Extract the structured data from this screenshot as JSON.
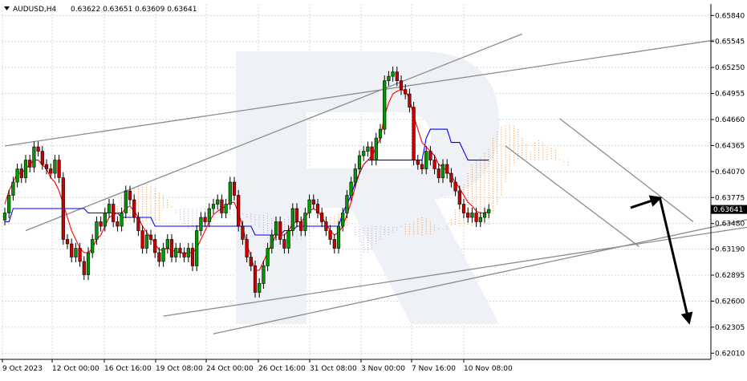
{
  "header": {
    "symbol": "AUDUSD,H4",
    "ohlc": "0.63622 0.63651 0.63609 0.63641"
  },
  "current_price_label": "0.63641",
  "watermark_icon": "rx-logo-watermark",
  "colors": {
    "bull": "#009900",
    "bear": "#cc0000",
    "tenkan": "#ff0000",
    "kijun": "#0000ff",
    "grid": "#d8d8d8",
    "cloud": "#ff8c1a",
    "cloud_alt": "#b39ddb",
    "trendline": "#8c8c8c",
    "arrow": "#000000",
    "watermark": "#eef1f6"
  },
  "chart_data": {
    "type": "candlestick",
    "title": "AUDUSD,H4",
    "y_ticks": [
      "0.65840",
      "0.65545",
      "0.65250",
      "0.64955",
      "0.64660",
      "0.64365",
      "0.64070",
      "0.63775",
      "0.63480",
      "0.63190",
      "0.62895",
      "0.62600",
      "0.62305",
      "0.62010"
    ],
    "ylim": [
      0.6194,
      0.6597
    ],
    "x_ticks": [
      "9 Oct 2023",
      "12 Oct 00:00",
      "16 Oct 16:00",
      "19 Oct 08:00",
      "24 Oct 00:00",
      "26 Oct 16:00",
      "31 Oct 08:00",
      "3 Nov 00:00",
      "7 Nov 16:00",
      "10 Nov 08:00"
    ],
    "grid": true,
    "close": [
      0.636,
      0.638,
      0.6395,
      0.641,
      0.64,
      0.642,
      0.6412,
      0.6435,
      0.643,
      0.6415,
      0.641,
      0.6405,
      0.642,
      0.64,
      0.633,
      0.6325,
      0.631,
      0.632,
      0.6305,
      0.629,
      0.6315,
      0.633,
      0.635,
      0.6345,
      0.636,
      0.637,
      0.635,
      0.6345,
      0.636,
      0.6385,
      0.6375,
      0.6355,
      0.634,
      0.632,
      0.6335,
      0.633,
      0.6315,
      0.6305,
      0.632,
      0.633,
      0.631,
      0.632,
      0.6315,
      0.631,
      0.632,
      0.63,
      0.634,
      0.6355,
      0.635,
      0.6365,
      0.637,
      0.6375,
      0.636,
      0.637,
      0.6395,
      0.638,
      0.6345,
      0.633,
      0.631,
      0.63,
      0.627,
      0.628,
      0.63,
      0.632,
      0.6335,
      0.635,
      0.633,
      0.632,
      0.634,
      0.6365,
      0.635,
      0.634,
      0.636,
      0.6375,
      0.637,
      0.636,
      0.635,
      0.634,
      0.633,
      0.632,
      0.6345,
      0.636,
      0.638,
      0.6395,
      0.641,
      0.6425,
      0.643,
      0.6435,
      0.642,
      0.6445,
      0.6455,
      0.651,
      0.6515,
      0.652,
      0.651,
      0.65,
      0.6495,
      0.648,
      0.642,
      0.6415,
      0.641,
      0.643,
      0.642,
      0.641,
      0.64,
      0.6415,
      0.6405,
      0.6395,
      0.6385,
      0.637,
      0.636,
      0.6355,
      0.636,
      0.635,
      0.6355,
      0.636,
      0.6364
    ],
    "tenkan": [
      0.637,
      0.6385,
      0.6395,
      0.6405,
      0.6405,
      0.641,
      0.6415,
      0.642,
      0.642,
      0.6415,
      0.641,
      0.64,
      0.6395,
      0.6385,
      0.637,
      0.6355,
      0.634,
      0.633,
      0.632,
      0.6315,
      0.6315,
      0.632,
      0.633,
      0.6335,
      0.6345,
      0.6355,
      0.6358,
      0.636,
      0.636,
      0.6365,
      0.6368,
      0.6362,
      0.6355,
      0.6345,
      0.6338,
      0.6332,
      0.6325,
      0.6318,
      0.6318,
      0.632,
      0.6318,
      0.6316,
      0.6315,
      0.6314,
      0.6315,
      0.6315,
      0.632,
      0.633,
      0.634,
      0.635,
      0.6358,
      0.6362,
      0.6365,
      0.6368,
      0.6372,
      0.6372,
      0.636,
      0.6345,
      0.6325,
      0.631,
      0.6295,
      0.6295,
      0.6305,
      0.6315,
      0.6325,
      0.6335,
      0.6335,
      0.6335,
      0.634,
      0.6348,
      0.635,
      0.635,
      0.6355,
      0.6362,
      0.6365,
      0.6362,
      0.6355,
      0.6348,
      0.634,
      0.6335,
      0.6338,
      0.6345,
      0.6358,
      0.6372,
      0.639,
      0.6405,
      0.6415,
      0.642,
      0.6425,
      0.6435,
      0.6445,
      0.647,
      0.6485,
      0.6495,
      0.6498,
      0.65,
      0.6498,
      0.649,
      0.647,
      0.6455,
      0.644,
      0.6435,
      0.643,
      0.6425,
      0.6415,
      0.6412,
      0.6408,
      0.6402,
      0.6395,
      0.6388,
      0.638,
      0.6372,
      0.6368,
      0.6362,
      0.636,
      0.636,
      0.6362
    ],
    "kijun": [
      0.635,
      0.635,
      0.6365,
      0.6365,
      0.6365,
      0.6365,
      0.6365,
      0.6365,
      0.6365,
      0.6365,
      0.6365,
      0.6365,
      0.6365,
      0.6365,
      0.6365,
      0.6365,
      0.6365,
      0.6365,
      0.6365,
      0.6365,
      0.636,
      0.636,
      0.636,
      0.636,
      0.636,
      0.636,
      0.636,
      0.636,
      0.6355,
      0.6355,
      0.6355,
      0.6355,
      0.6355,
      0.6355,
      0.6355,
      0.6355,
      0.6345,
      0.6345,
      0.6345,
      0.6345,
      0.6345,
      0.6345,
      0.6345,
      0.6345,
      0.6345,
      0.6345,
      0.6345,
      0.6345,
      0.6345,
      0.6345,
      0.6345,
      0.6345,
      0.6345,
      0.6345,
      0.6345,
      0.6345,
      0.6345,
      0.6345,
      0.6345,
      0.6345,
      0.6335,
      0.6335,
      0.6335,
      0.6335,
      0.6335,
      0.6335,
      0.6335,
      0.634,
      0.634,
      0.634,
      0.6345,
      0.6345,
      0.6345,
      0.6345,
      0.6345,
      0.6345,
      0.6345,
      0.6345,
      0.6345,
      0.6345,
      0.6345,
      0.636,
      0.637,
      0.638,
      0.6395,
      0.6405,
      0.6415,
      0.642,
      0.642,
      0.642,
      0.642,
      0.642,
      0.642,
      0.642,
      0.642,
      0.642,
      0.642,
      0.642,
      0.642,
      0.642,
      0.642,
      0.6445,
      0.6455,
      0.6455,
      0.6455,
      0.6455,
      0.6455,
      0.644,
      0.644,
      0.644,
      0.643,
      0.642,
      0.642,
      0.642,
      0.642,
      0.642,
      0.642
    ],
    "trendlines": [
      {
        "p1": [
          0,
          0.6436
        ],
        "p2": [
          170,
          0.6556
        ]
      },
      {
        "p1": [
          5,
          0.634
        ],
        "p2": [
          124,
          0.6563
        ]
      },
      {
        "p1": [
          50,
          0.6223
        ],
        "p2": [
          207,
          0.6382
        ]
      },
      {
        "p1": [
          38,
          0.6243
        ],
        "p2": [
          231,
          0.6382
        ]
      },
      {
        "p1": [
          120,
          0.6436
        ],
        "p2": [
          152,
          0.6322
        ]
      },
      {
        "p1": [
          133,
          0.6467
        ],
        "p2": [
          165,
          0.635
        ]
      }
    ],
    "arrows": [
      {
        "from": [
          150,
          0.6366
        ],
        "to": [
          157,
          0.6377
        ]
      },
      {
        "from": [
          157,
          0.6377
        ],
        "to": [
          164,
          0.6236
        ]
      }
    ]
  }
}
